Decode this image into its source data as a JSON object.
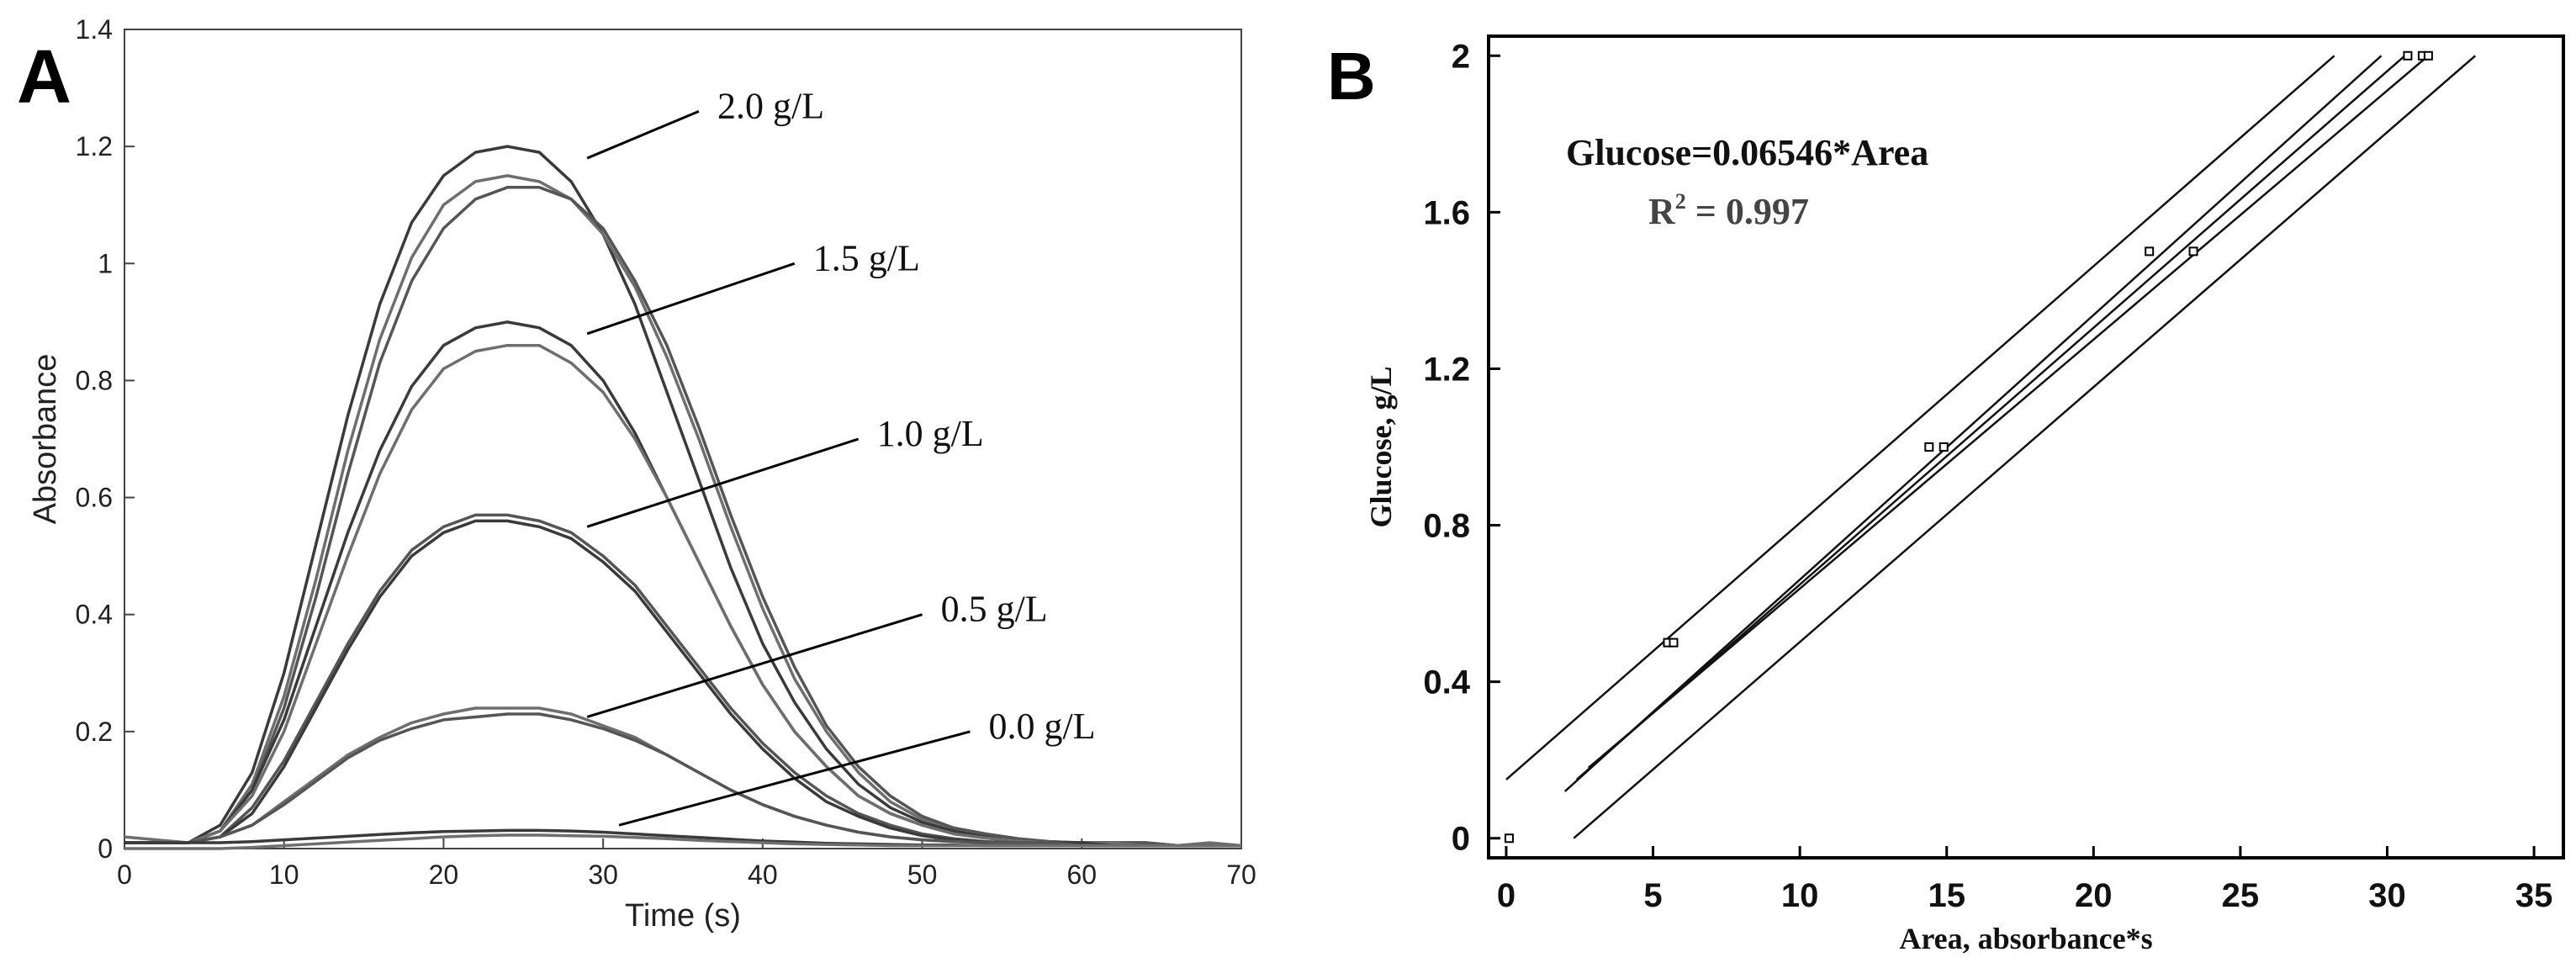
{
  "chart_data": [
    {
      "type": "line",
      "panel_label": "A",
      "xlabel": "Time (s)",
      "ylabel": "Absorbance",
      "xlim": [
        0,
        70
      ],
      "ylim": [
        0,
        1.4
      ],
      "xticks": [
        0,
        10,
        20,
        30,
        40,
        50,
        60,
        70
      ],
      "yticks": [
        0,
        0.2,
        0.4,
        0.6,
        0.8,
        1,
        1.2,
        1.4
      ],
      "ytick_labels": [
        "0",
        "0.2",
        "0.4",
        "0.6",
        "0.8",
        "1",
        "1.2",
        "1.4"
      ],
      "x": [
        0,
        2,
        4,
        6,
        8,
        10,
        12,
        14,
        16,
        18,
        20,
        22,
        24,
        26,
        28,
        30,
        32,
        34,
        36,
        38,
        40,
        42,
        44,
        46,
        48,
        50,
        52,
        54,
        56,
        58,
        60,
        62,
        64,
        66,
        68,
        70
      ],
      "series": [
        {
          "name": "2.0 g/L rep1",
          "values": [
            0.01,
            0.01,
            0.01,
            0.04,
            0.13,
            0.3,
            0.52,
            0.74,
            0.93,
            1.07,
            1.15,
            1.19,
            1.2,
            1.19,
            1.14,
            1.05,
            0.93,
            0.78,
            0.63,
            0.48,
            0.35,
            0.25,
            0.17,
            0.11,
            0.07,
            0.045,
            0.03,
            0.02,
            0.015,
            0.01,
            0.01,
            0.01,
            0.01,
            0.005,
            0.005,
            0.005
          ]
        },
        {
          "name": "2.0 g/L rep2",
          "values": [
            0.01,
            0.01,
            0.01,
            0.03,
            0.11,
            0.26,
            0.46,
            0.68,
            0.87,
            1.01,
            1.1,
            1.14,
            1.15,
            1.14,
            1.11,
            1.05,
            0.96,
            0.84,
            0.7,
            0.55,
            0.41,
            0.29,
            0.2,
            0.13,
            0.08,
            0.05,
            0.035,
            0.025,
            0.017,
            0.012,
            0.01,
            0.01,
            0.01,
            0.005,
            0.005,
            0.005
          ]
        },
        {
          "name": "2.0 g/L rep3",
          "values": [
            0.01,
            0.01,
            0.01,
            0.03,
            0.1,
            0.24,
            0.43,
            0.64,
            0.83,
            0.97,
            1.06,
            1.11,
            1.13,
            1.13,
            1.11,
            1.06,
            0.97,
            0.86,
            0.72,
            0.57,
            0.43,
            0.31,
            0.21,
            0.14,
            0.09,
            0.055,
            0.035,
            0.025,
            0.017,
            0.012,
            0.01,
            0.01,
            0.01,
            0.005,
            0.005,
            0.005
          ]
        },
        {
          "name": "1.5 g/L rep1",
          "values": [
            0.01,
            0.01,
            0.01,
            0.03,
            0.1,
            0.22,
            0.38,
            0.54,
            0.68,
            0.79,
            0.86,
            0.89,
            0.9,
            0.89,
            0.86,
            0.8,
            0.71,
            0.6,
            0.49,
            0.38,
            0.28,
            0.2,
            0.14,
            0.09,
            0.06,
            0.04,
            0.025,
            0.018,
            0.013,
            0.01,
            0.01,
            0.01,
            0.005,
            0.005,
            0.005,
            0.005
          ]
        },
        {
          "name": "1.5 g/L rep2",
          "values": [
            0.01,
            0.01,
            0.01,
            0.03,
            0.09,
            0.2,
            0.35,
            0.5,
            0.64,
            0.75,
            0.82,
            0.85,
            0.86,
            0.86,
            0.83,
            0.78,
            0.7,
            0.6,
            0.49,
            0.38,
            0.28,
            0.2,
            0.14,
            0.09,
            0.06,
            0.04,
            0.025,
            0.018,
            0.013,
            0.01,
            0.01,
            0.01,
            0.005,
            0.005,
            0.005,
            0.005
          ]
        },
        {
          "name": "1.0 g/L rep1",
          "values": [
            0.01,
            0.01,
            0.01,
            0.02,
            0.07,
            0.15,
            0.25,
            0.35,
            0.44,
            0.51,
            0.55,
            0.57,
            0.57,
            0.56,
            0.54,
            0.5,
            0.45,
            0.38,
            0.31,
            0.24,
            0.18,
            0.13,
            0.09,
            0.06,
            0.04,
            0.025,
            0.017,
            0.012,
            0.01,
            0.01,
            0.01,
            0.005,
            0.005,
            0.005,
            0.005,
            0.005
          ]
        },
        {
          "name": "1.0 g/L rep2",
          "values": [
            0.01,
            0.01,
            0.01,
            0.02,
            0.06,
            0.14,
            0.24,
            0.34,
            0.43,
            0.5,
            0.54,
            0.56,
            0.56,
            0.55,
            0.53,
            0.49,
            0.44,
            0.37,
            0.3,
            0.23,
            0.17,
            0.12,
            0.08,
            0.055,
            0.035,
            0.022,
            0.015,
            0.011,
            0.01,
            0.01,
            0.01,
            0.005,
            0.005,
            0.005,
            0.005,
            0.005
          ]
        },
        {
          "name": "0.5 g/L rep1",
          "values": [
            0.02,
            0.015,
            0.01,
            0.02,
            0.04,
            0.08,
            0.12,
            0.16,
            0.19,
            0.215,
            0.23,
            0.24,
            0.24,
            0.24,
            0.23,
            0.21,
            0.19,
            0.16,
            0.13,
            0.1,
            0.075,
            0.055,
            0.04,
            0.028,
            0.02,
            0.015,
            0.012,
            0.01,
            0.01,
            0.01,
            0.005,
            0.005,
            0.005,
            0.005,
            0.01,
            0.005
          ]
        },
        {
          "name": "0.5 g/L rep2",
          "values": [
            0.01,
            0.01,
            0.01,
            0.02,
            0.04,
            0.075,
            0.115,
            0.155,
            0.185,
            0.205,
            0.22,
            0.225,
            0.23,
            0.23,
            0.22,
            0.205,
            0.185,
            0.16,
            0.13,
            0.1,
            0.075,
            0.055,
            0.04,
            0.028,
            0.02,
            0.015,
            0.012,
            0.01,
            0.01,
            0.01,
            0.005,
            0.005,
            0.005,
            0.005,
            0.005,
            0.005
          ]
        },
        {
          "name": "0.0 g/L rep1",
          "values": [
            0.01,
            0.01,
            0.01,
            0.01,
            0.012,
            0.015,
            0.018,
            0.021,
            0.024,
            0.027,
            0.029,
            0.03,
            0.031,
            0.031,
            0.03,
            0.028,
            0.025,
            0.022,
            0.019,
            0.016,
            0.013,
            0.011,
            0.009,
            0.008,
            0.007,
            0.006,
            0.006,
            0.005,
            0.005,
            0.005,
            0.005,
            0.005,
            0.005,
            0.005,
            0.005,
            0.005
          ]
        },
        {
          "name": "0.0 g/L rep2",
          "values": [
            0.0,
            0.0,
            0.0,
            0.0,
            0.002,
            0.005,
            0.008,
            0.011,
            0.014,
            0.017,
            0.02,
            0.022,
            0.023,
            0.023,
            0.022,
            0.021,
            0.019,
            0.017,
            0.014,
            0.012,
            0.01,
            0.008,
            0.007,
            0.006,
            0.005,
            0.005,
            0.005,
            0.005,
            0.005,
            0.005,
            0.005,
            0.005,
            0.005,
            0.005,
            0.005,
            0.005
          ]
        }
      ],
      "annotations": [
        {
          "text": "2.0 g/L",
          "line_from": [
            29,
            1.18
          ],
          "line_to": [
            36,
            1.26
          ]
        },
        {
          "text": "1.5 g/L",
          "line_from": [
            29,
            0.88
          ],
          "line_to": [
            42,
            1.0
          ]
        },
        {
          "text": "1.0 g/L",
          "line_from": [
            29,
            0.55
          ],
          "line_to": [
            46,
            0.7
          ]
        },
        {
          "text": "0.5 g/L",
          "line_from": [
            29,
            0.225
          ],
          "line_to": [
            50,
            0.4
          ]
        },
        {
          "text": "0.0 g/L",
          "line_from": [
            31,
            0.04
          ],
          "line_to": [
            53,
            0.2
          ]
        }
      ]
    },
    {
      "type": "scatter",
      "panel_label": "B",
      "xlabel": "Area, absorbance*s",
      "ylabel": "Glucose, g/L",
      "xlim": [
        -0.6,
        36
      ],
      "ylim": [
        -0.05,
        2.05
      ],
      "xticks": [
        0,
        5,
        10,
        15,
        20,
        25,
        30,
        35
      ],
      "yticks": [
        0,
        0.4,
        0.8,
        1.2,
        1.6,
        2
      ],
      "ytick_labels": [
        "0",
        "0.4",
        "0.8",
        "1.2",
        "1.6",
        "2"
      ],
      "equation": "Glucose=0.06546*Area",
      "r_squared_label": "R",
      "r_squared_sup": "2",
      "r_squared_value": " = 0.997",
      "points": [
        {
          "x": 0.1,
          "y": 0.0
        },
        {
          "x": 5.5,
          "y": 0.5
        },
        {
          "x": 5.7,
          "y": 0.5
        },
        {
          "x": 14.4,
          "y": 1.0
        },
        {
          "x": 14.9,
          "y": 1.0
        },
        {
          "x": 21.9,
          "y": 1.5
        },
        {
          "x": 23.4,
          "y": 1.5
        },
        {
          "x": 30.7,
          "y": 2.0
        },
        {
          "x": 31.2,
          "y": 2.0
        },
        {
          "x": 31.4,
          "y": 2.0
        }
      ],
      "lines": [
        {
          "name": "upper prediction band",
          "from": [
            0,
            0.15
          ],
          "to": [
            28.2,
            2.0
          ]
        },
        {
          "name": "upper confidence band",
          "from": [
            2.0,
            0.12
          ],
          "to": [
            29.8,
            2.0
          ]
        },
        {
          "name": "regression fit",
          "from": [
            2.4,
            0.15
          ],
          "to": [
            30.6,
            2.0
          ]
        },
        {
          "name": "lower confidence band",
          "from": [
            2.8,
            0.18
          ],
          "to": [
            31.4,
            2.0
          ]
        },
        {
          "name": "lower prediction band",
          "from": [
            2.3,
            0.0
          ],
          "to": [
            33.0,
            2.0
          ]
        }
      ]
    }
  ]
}
